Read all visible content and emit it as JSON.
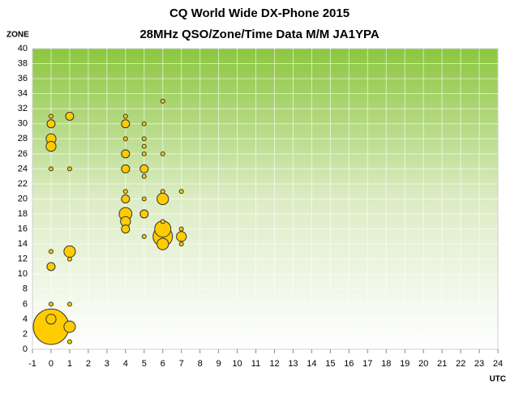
{
  "chart_data": {
    "type": "bubble",
    "title": "CQ World Wide DX-Phone 2015",
    "subtitle": "28MHz QSO/Zone/Time Data M/M JA1YPA",
    "y_label": "ZONE",
    "x_label": "UTC",
    "xlim": [
      -1,
      24
    ],
    "xticks": [
      -1,
      0,
      1,
      2,
      3,
      4,
      5,
      6,
      7,
      8,
      9,
      10,
      11,
      12,
      13,
      14,
      15,
      16,
      17,
      18,
      19,
      20,
      21,
      22,
      23,
      24
    ],
    "ylim": [
      0,
      40
    ],
    "yticks": [
      0,
      2,
      4,
      6,
      8,
      10,
      12,
      14,
      16,
      18,
      20,
      22,
      24,
      26,
      28,
      30,
      32,
      34,
      36,
      38,
      40
    ],
    "grid": true,
    "series": [
      {
        "color": "#ffcc00",
        "x": [
          0,
          0,
          0,
          0,
          0,
          0,
          0,
          0,
          0,
          0,
          1,
          1,
          1,
          1,
          1,
          1,
          1,
          4,
          4,
          4,
          4,
          4,
          4,
          4,
          4,
          4,
          4,
          5,
          5,
          5,
          5,
          5,
          5,
          5,
          5,
          5,
          6,
          6,
          6,
          6,
          6,
          6,
          6,
          6,
          7,
          7,
          7,
          7
        ],
        "values": [
          31,
          30,
          28,
          27,
          24,
          13,
          11,
          6,
          4,
          3,
          31,
          24,
          13,
          12,
          6,
          3,
          1,
          31,
          30,
          28,
          26,
          24,
          21,
          20,
          18,
          17,
          16,
          30,
          28,
          27,
          26,
          24,
          23,
          20,
          18,
          15,
          33,
          26,
          21,
          20,
          17,
          16,
          15,
          14,
          21,
          16,
          15,
          14
        ],
        "sizes": [
          1,
          4,
          6,
          6,
          1,
          1,
          4,
          1,
          6,
          77,
          4,
          1,
          8,
          1,
          1,
          8,
          1,
          1,
          4,
          1,
          4,
          4,
          1,
          4,
          10,
          6,
          4,
          1,
          1,
          1,
          1,
          4,
          1,
          1,
          4,
          1,
          1,
          1,
          1,
          8,
          1,
          16,
          23,
          8,
          1,
          1,
          6,
          1
        ]
      }
    ]
  }
}
